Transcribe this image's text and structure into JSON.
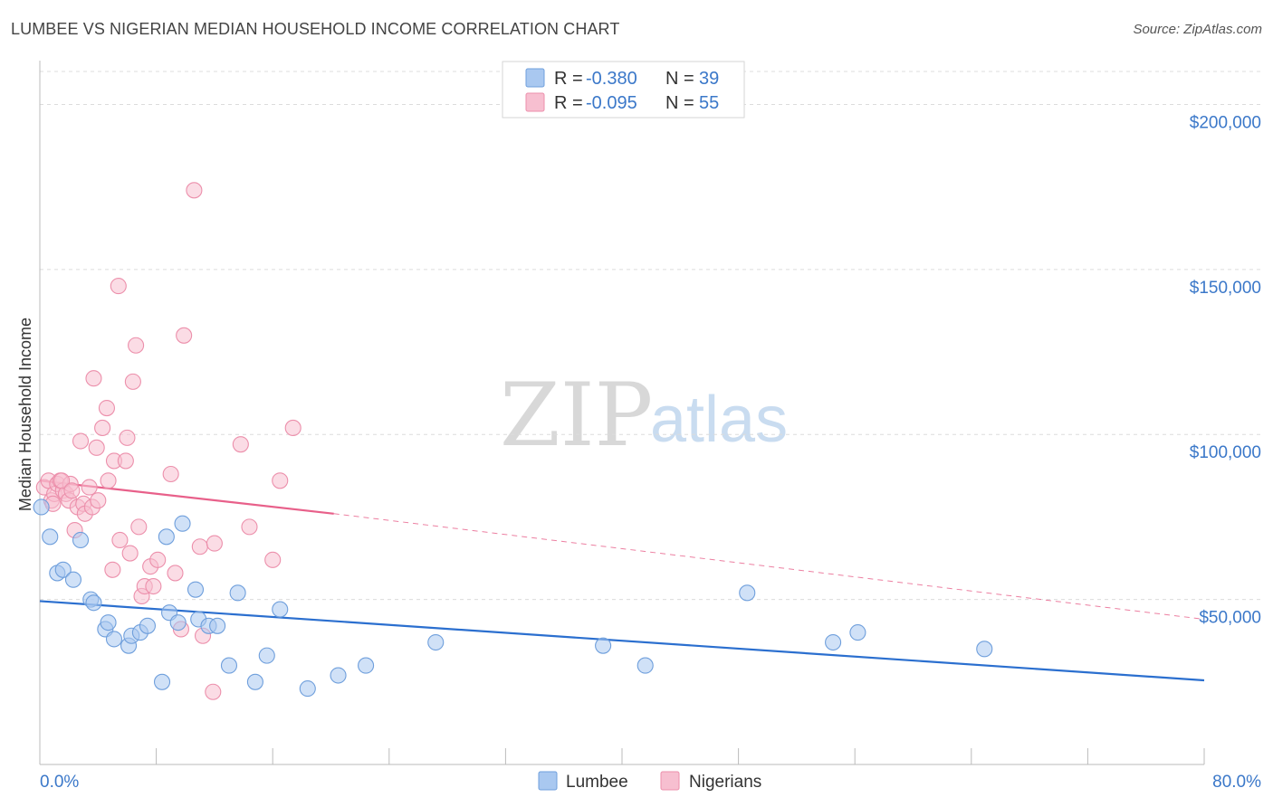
{
  "title": "LUMBEE VS NIGERIAN MEDIAN HOUSEHOLD INCOME CORRELATION CHART",
  "source": "Source: ZipAtlas.com",
  "watermark": {
    "zip": "ZIP",
    "atlas": "atlas"
  },
  "legend_top": [
    {
      "r_label": "R =",
      "r_value": "-0.380",
      "n_label": "N =",
      "n_value": "39",
      "color": "#a9c8f0",
      "stroke": "#6f9fdc"
    },
    {
      "r_label": "R =",
      "r_value": "-0.095",
      "n_label": "N =",
      "n_value": "55",
      "color": "#f7bfd0",
      "stroke": "#ec8fab"
    }
  ],
  "legend_bottom": [
    {
      "label": "Lumbee",
      "color": "#a9c8f0",
      "stroke": "#6f9fdc"
    },
    {
      "label": "Nigerians",
      "color": "#f7bfd0",
      "stroke": "#ec8fab"
    }
  ],
  "chart_data": {
    "type": "scatter",
    "title": "LUMBEE VS NIGERIAN MEDIAN HOUSEHOLD INCOME CORRELATION CHART",
    "xlabel": "",
    "ylabel": "Median Household Income",
    "xlim": [
      0,
      80
    ],
    "ylim": [
      0,
      210000
    ],
    "x_tick_labels": [
      "0.0%",
      "80.0%"
    ],
    "y_ticks": [
      50000,
      100000,
      150000,
      200000
    ],
    "y_tick_labels": [
      "$50,000",
      "$100,000",
      "$150,000",
      "$200,000"
    ],
    "grid": true,
    "legend_placement": "top-center",
    "series": [
      {
        "name": "Lumbee",
        "color": "#6f9fdc",
        "trend": {
          "x": [
            0,
            80
          ],
          "y": [
            49500,
            25500
          ],
          "color": "#2b6fcf"
        },
        "points": [
          [
            0.1,
            78000
          ],
          [
            0.7,
            69000
          ],
          [
            1.2,
            58000
          ],
          [
            1.6,
            59000
          ],
          [
            2.3,
            56000
          ],
          [
            2.8,
            68000
          ],
          [
            3.5,
            50000
          ],
          [
            3.7,
            49000
          ],
          [
            4.5,
            41000
          ],
          [
            4.7,
            43000
          ],
          [
            5.1,
            38000
          ],
          [
            6.1,
            36000
          ],
          [
            6.3,
            39000
          ],
          [
            6.9,
            40000
          ],
          [
            7.4,
            42000
          ],
          [
            8.4,
            25000
          ],
          [
            8.7,
            69000
          ],
          [
            8.9,
            46000
          ],
          [
            9.5,
            43000
          ],
          [
            9.8,
            73000
          ],
          [
            10.7,
            53000
          ],
          [
            10.9,
            44000
          ],
          [
            11.6,
            42000
          ],
          [
            12.2,
            42000
          ],
          [
            13.0,
            30000
          ],
          [
            13.6,
            52000
          ],
          [
            14.8,
            25000
          ],
          [
            15.6,
            33000
          ],
          [
            16.5,
            47000
          ],
          [
            18.4,
            23000
          ],
          [
            20.5,
            27000
          ],
          [
            22.4,
            30000
          ],
          [
            27.2,
            37000
          ],
          [
            38.7,
            36000
          ],
          [
            41.6,
            30000
          ],
          [
            48.6,
            52000
          ],
          [
            54.5,
            37000
          ],
          [
            56.2,
            40000
          ],
          [
            64.9,
            35000
          ]
        ]
      },
      {
        "name": "Nigerians",
        "color": "#ec8fab",
        "trend": {
          "x": [
            0,
            20.2
          ],
          "y": [
            86000,
            76000
          ],
          "dashed_to": [
            80,
            44000
          ],
          "color": "#e8608a"
        },
        "points": [
          [
            0.3,
            84000
          ],
          [
            0.6,
            86000
          ],
          [
            0.8,
            80000
          ],
          [
            1.0,
            82000
          ],
          [
            1.2,
            85000
          ],
          [
            1.4,
            86000
          ],
          [
            1.6,
            83000
          ],
          [
            1.8,
            82000
          ],
          [
            2.0,
            80000
          ],
          [
            2.1,
            85000
          ],
          [
            2.4,
            71000
          ],
          [
            2.6,
            78000
          ],
          [
            2.8,
            98000
          ],
          [
            3.0,
            79000
          ],
          [
            3.1,
            76000
          ],
          [
            3.4,
            84000
          ],
          [
            3.6,
            78000
          ],
          [
            3.7,
            117000
          ],
          [
            3.9,
            96000
          ],
          [
            4.0,
            80000
          ],
          [
            4.3,
            102000
          ],
          [
            4.6,
            108000
          ],
          [
            4.7,
            86000
          ],
          [
            5.0,
            59000
          ],
          [
            5.1,
            92000
          ],
          [
            5.4,
            145000
          ],
          [
            5.5,
            68000
          ],
          [
            5.9,
            92000
          ],
          [
            6.0,
            99000
          ],
          [
            6.2,
            64000
          ],
          [
            6.4,
            116000
          ],
          [
            6.6,
            127000
          ],
          [
            6.8,
            72000
          ],
          [
            7.0,
            51000
          ],
          [
            7.2,
            54000
          ],
          [
            7.6,
            60000
          ],
          [
            7.8,
            54000
          ],
          [
            8.1,
            62000
          ],
          [
            9.0,
            88000
          ],
          [
            9.3,
            58000
          ],
          [
            9.7,
            41000
          ],
          [
            9.9,
            130000
          ],
          [
            10.6,
            174000
          ],
          [
            11.0,
            66000
          ],
          [
            11.2,
            39000
          ],
          [
            11.9,
            22000
          ],
          [
            12.0,
            67000
          ],
          [
            13.8,
            97000
          ],
          [
            14.4,
            72000
          ],
          [
            16.0,
            62000
          ],
          [
            16.5,
            86000
          ],
          [
            17.4,
            102000
          ],
          [
            0.9,
            79000
          ],
          [
            1.5,
            86000
          ],
          [
            2.2,
            83000
          ]
        ]
      }
    ]
  }
}
